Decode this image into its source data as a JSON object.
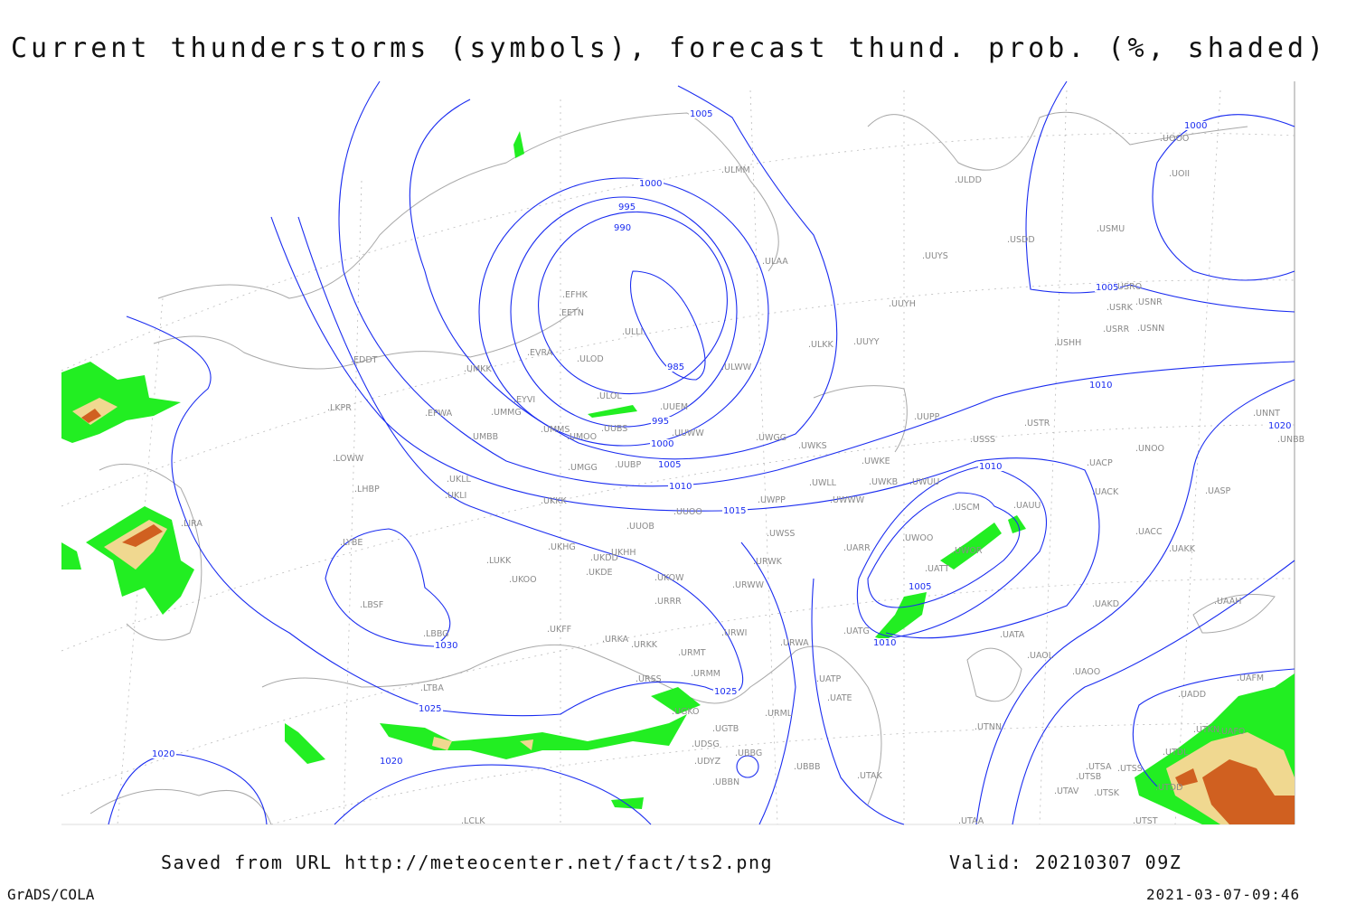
{
  "title": "Current thunderstorms (symbols), forecast thund. prob. (%, shaded)",
  "footer": {
    "saved": "Saved from URL http://meteocenter.net/fact/ts2.png",
    "valid": "Valid: 20210307 09Z",
    "software": "GrADS/COLA",
    "timestamp": "2021-03-07-09:46"
  },
  "colors": {
    "isobar": "#1a2cf0",
    "stations": "#8a8a8a",
    "prob_low": "#22ee22",
    "prob_mid": "#f0d890",
    "prob_high": "#d06020",
    "coast": "#a8a8a8"
  },
  "isobar_labels": [
    "1005",
    "1000",
    "995",
    "990",
    "985",
    "995",
    "1000",
    "1005",
    "1010",
    "1015",
    "1000",
    "1005",
    "1010",
    "1020",
    "1010",
    "1005",
    "1010",
    "1030",
    "1025",
    "1025",
    "1020",
    "1020"
  ],
  "stations": [
    "EFHK",
    "EETN",
    "ULLI",
    "ULOD",
    "EVRA",
    "EYVI",
    "ULOL",
    "UUEM",
    "ULWW",
    "UMMG",
    "UMMS",
    "UMOO",
    "UUBS",
    "UUWW",
    "UWGG",
    "UMGG",
    "UUBP",
    "ULAA",
    "ULMM",
    "ULDD",
    "UUYS",
    "USDD",
    "USMU",
    "UOOO",
    "UOII",
    "UUYH",
    "UUYY",
    "ULKK",
    "USRO",
    "USRK",
    "USNR",
    "USRR",
    "USNN",
    "USHH",
    "UUPP",
    "USTR",
    "USSS",
    "UWKS",
    "UWKE",
    "UWKB",
    "UWUU",
    "UNNT",
    "UNBB",
    "UNOO",
    "UACP",
    "UACK",
    "UASP",
    "UWLL",
    "UWWW",
    "UWPP",
    "UUOO",
    "UUOB",
    "UKKK",
    "UKLL",
    "UKLI",
    "USCM",
    "UAUU",
    "UWOO",
    "UWOR",
    "UATT",
    "UACC",
    "UAKK",
    "UWSS",
    "UARR",
    "URWK",
    "UKHH",
    "UKDD",
    "UKHG",
    "UKDE",
    "UKOW",
    "UKOO",
    "LUKK",
    "URWW",
    "URRR",
    "UATG",
    "UAKD",
    "UAAH",
    "UKFF",
    "URWI",
    "URKA",
    "URKK",
    "URMT",
    "URWA",
    "UATA",
    "UAOL",
    "UAOO",
    "UAFM",
    "URMM",
    "URSS",
    "UATP",
    "UATE",
    "UGKO",
    "URML",
    "UGTB",
    "UTNN",
    "UADD",
    "UTKN",
    "UAFO",
    "UTDL",
    "UDSG",
    "UBBG",
    "UDYZ",
    "UBBB",
    "UTAK",
    "UBBN",
    "UTSA",
    "UTSS",
    "UTSB",
    "UTAV",
    "UTSK",
    "UTDD",
    "UTAA",
    "UTST",
    "LCLK",
    "LTBA",
    "LBBG",
    "LBSF",
    "LYBE",
    "LHBP",
    "LOWW",
    "LKPR",
    "EDDT",
    "EPWA",
    "UMKK",
    "UMBB",
    "LIRA"
  ]
}
